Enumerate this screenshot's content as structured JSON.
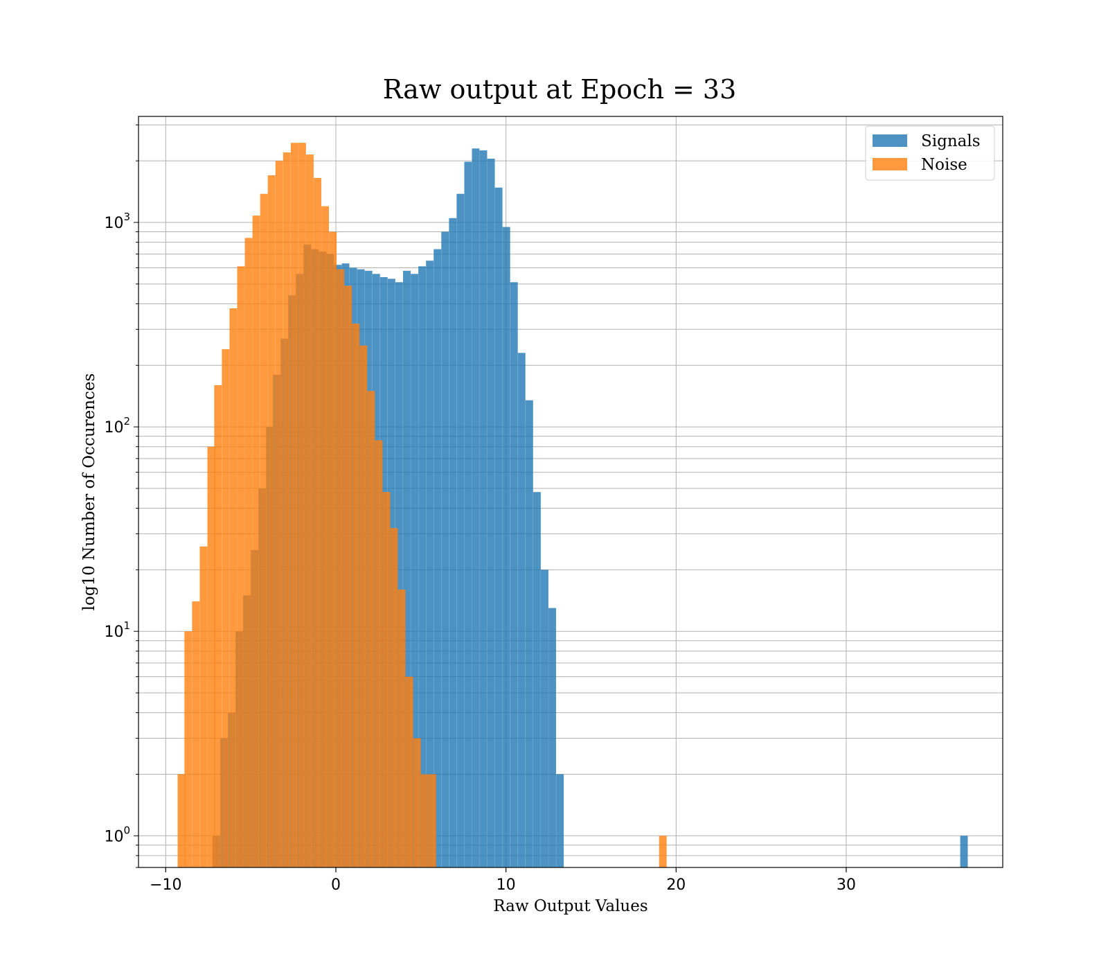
{
  "chart_data": {
    "type": "bar",
    "title": "Raw output at Epoch = 33",
    "xlabel": "Raw Output Values",
    "ylabel": "log10 Number of Occurences",
    "xlim": [
      -11.6,
      39.2
    ],
    "ylim": [
      0.7,
      3300
    ],
    "yscale": "log",
    "grid": true,
    "legend": "top-right",
    "x_ticks": [
      {
        "value": -10,
        "label": "−10"
      },
      {
        "value": 0,
        "label": "0"
      },
      {
        "value": 10,
        "label": "10"
      },
      {
        "value": 20,
        "label": "20"
      },
      {
        "value": 30,
        "label": "30"
      }
    ],
    "y_ticks": [
      {
        "value": 1,
        "base": "10",
        "exp": "0"
      },
      {
        "value": 10,
        "base": "10",
        "exp": "1"
      },
      {
        "value": 100,
        "base": "10",
        "exp": "2"
      },
      {
        "value": 1000,
        "base": "10",
        "exp": "3"
      }
    ],
    "bin_width": 0.444,
    "series": [
      {
        "name": "Signals",
        "color": "#1f77b4",
        "opacity": 0.8,
        "bins": [
          [
            -7.25,
            1
          ],
          [
            -6.8,
            3
          ],
          [
            -6.35,
            4
          ],
          [
            -5.9,
            10
          ],
          [
            -5.45,
            15
          ],
          [
            -5.0,
            25
          ],
          [
            -4.55,
            50
          ],
          [
            -4.1,
            100
          ],
          [
            -3.7,
            180
          ],
          [
            -3.25,
            270
          ],
          [
            -2.8,
            440
          ],
          [
            -2.35,
            560
          ],
          [
            -1.9,
            780
          ],
          [
            -1.45,
            740
          ],
          [
            -1.0,
            720
          ],
          [
            -0.55,
            700
          ],
          [
            -0.1,
            620
          ],
          [
            0.35,
            630
          ],
          [
            0.8,
            600
          ],
          [
            1.25,
            590
          ],
          [
            1.7,
            580
          ],
          [
            2.15,
            560
          ],
          [
            2.6,
            540
          ],
          [
            3.05,
            530
          ],
          [
            3.5,
            510
          ],
          [
            3.95,
            580
          ],
          [
            4.4,
            560
          ],
          [
            4.85,
            610
          ],
          [
            5.3,
            650
          ],
          [
            5.75,
            740
          ],
          [
            6.2,
            900
          ],
          [
            6.65,
            1050
          ],
          [
            7.1,
            1380
          ],
          [
            7.55,
            1980
          ],
          [
            8.0,
            2300
          ],
          [
            8.45,
            2250
          ],
          [
            8.9,
            2050
          ],
          [
            9.35,
            1480
          ],
          [
            9.8,
            950
          ],
          [
            10.25,
            510
          ],
          [
            10.7,
            230
          ],
          [
            11.15,
            135
          ],
          [
            11.6,
            48
          ],
          [
            12.05,
            20
          ],
          [
            12.5,
            13
          ],
          [
            12.95,
            2
          ]
        ]
      },
      {
        "name": "Noise",
        "color": "#ff7f0e",
        "opacity": 0.8,
        "bins": [
          [
            -9.3,
            2
          ],
          [
            -8.9,
            10
          ],
          [
            -8.45,
            14
          ],
          [
            -8.0,
            26
          ],
          [
            -7.55,
            80
          ],
          [
            -7.15,
            160
          ],
          [
            -6.7,
            240
          ],
          [
            -6.25,
            380
          ],
          [
            -5.8,
            610
          ],
          [
            -5.35,
            840
          ],
          [
            -4.9,
            1080
          ],
          [
            -4.45,
            1380
          ],
          [
            -4.0,
            1700
          ],
          [
            -3.55,
            2000
          ],
          [
            -3.1,
            2200
          ],
          [
            -2.65,
            2450
          ],
          [
            -2.2,
            2450
          ],
          [
            -1.75,
            2150
          ],
          [
            -1.3,
            1650
          ],
          [
            -0.85,
            1200
          ],
          [
            -0.4,
            900
          ],
          [
            0.05,
            590
          ],
          [
            0.5,
            490
          ],
          [
            0.95,
            320
          ],
          [
            1.4,
            250
          ],
          [
            1.85,
            150
          ],
          [
            2.3,
            86
          ],
          [
            2.75,
            48
          ],
          [
            3.2,
            32
          ],
          [
            3.65,
            16
          ],
          [
            4.1,
            6
          ],
          [
            4.55,
            3
          ],
          [
            5.0,
            2
          ],
          [
            5.45,
            2
          ],
          [
            19.0,
            1
          ]
        ]
      }
    ],
    "outliers": [
      {
        "series": "Signals",
        "x": 36.7,
        "value": 1
      }
    ]
  }
}
